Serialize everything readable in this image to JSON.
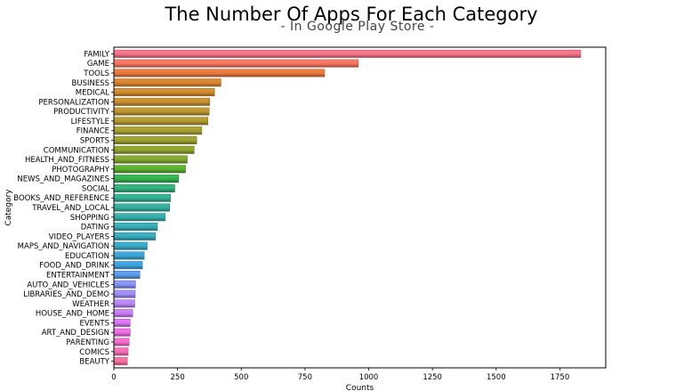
{
  "chart_data": {
    "type": "bar",
    "orientation": "horizontal",
    "title": "The Number Of Apps For Each Category",
    "subtitle": "- In Google Play Store -",
    "xlabel": "Counts",
    "ylabel": "Category",
    "xlim": [
      0,
      1930
    ],
    "xticks": [
      0,
      250,
      500,
      750,
      1000,
      1250,
      1500,
      1750
    ],
    "grid": false,
    "categories": [
      "FAMILY",
      "GAME",
      "TOOLS",
      "BUSINESS",
      "MEDICAL",
      "PERSONALIZATION",
      "PRODUCTIVITY",
      "LIFESTYLE",
      "FINANCE",
      "SPORTS",
      "COMMUNICATION",
      "HEALTH_AND_FITNESS",
      "PHOTOGRAPHY",
      "NEWS_AND_MAGAZINES",
      "SOCIAL",
      "BOOKS_AND_REFERENCE",
      "TRAVEL_AND_LOCAL",
      "SHOPPING",
      "DATING",
      "VIDEO_PLAYERS",
      "MAPS_AND_NAVIGATION",
      "EDUCATION",
      "FOOD_AND_DRINK",
      "ENTERTAINMENT",
      "AUTO_AND_VEHICLES",
      "LIBRARIES_AND_DEMO",
      "WEATHER",
      "HOUSE_AND_HOME",
      "EVENTS",
      "ART_AND_DESIGN",
      "PARENTING",
      "COMICS",
      "BEAUTY"
    ],
    "values": [
      1832,
      959,
      827,
      420,
      395,
      376,
      374,
      369,
      345,
      325,
      315,
      288,
      281,
      254,
      239,
      222,
      219,
      202,
      171,
      163,
      131,
      119,
      112,
      102,
      85,
      84,
      82,
      74,
      64,
      64,
      60,
      56,
      53
    ],
    "colors": [
      "#f77189",
      "#f7755f",
      "#e7773f",
      "#d8812f",
      "#ce8b2f",
      "#c48f30",
      "#bb9431",
      "#b09731",
      "#a59c31",
      "#9ba031",
      "#8ea331",
      "#7fa631",
      "#5aad32",
      "#33b04f",
      "#33b07b",
      "#34ae90",
      "#35ad9c",
      "#36aba8",
      "#37aab1",
      "#38a9bb",
      "#39a7c5",
      "#3ba3d1",
      "#3e9fdb",
      "#5a9ae8",
      "#8590f2",
      "#9e8bf5",
      "#b584f4",
      "#c67cf4",
      "#d874f4",
      "#e76ddf",
      "#f26ac8",
      "#f56cb2",
      "#f66fa0"
    ]
  }
}
